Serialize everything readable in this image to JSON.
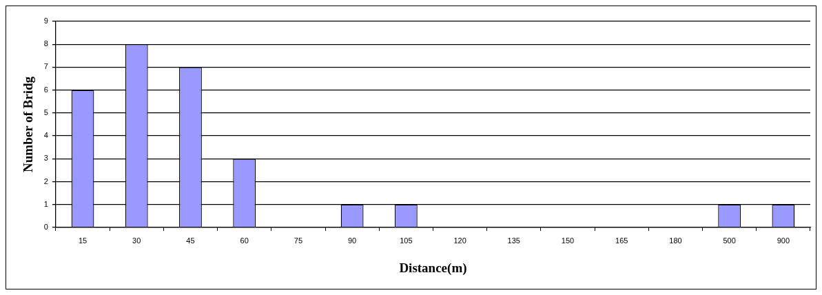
{
  "chart_data": {
    "type": "bar",
    "xlabel": "Distance(m)",
    "ylabel": "Number of Bridg",
    "categories": [
      "15",
      "30",
      "45",
      "60",
      "75",
      "90",
      "105",
      "120",
      "135",
      "150",
      "165",
      "180",
      "500",
      "900"
    ],
    "values": [
      6,
      8,
      7,
      3,
      0,
      1,
      1,
      0,
      0,
      0,
      0,
      0,
      1,
      1
    ],
    "color": "#9999ff",
    "ylim": [
      0,
      9
    ],
    "yticks": [
      0,
      1,
      2,
      3,
      4,
      5,
      6,
      7,
      8,
      9
    ],
    "grid": "y",
    "legend": false
  }
}
